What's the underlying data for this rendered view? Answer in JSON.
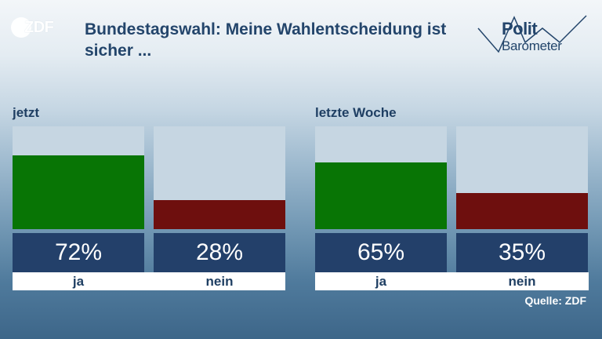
{
  "broadcaster_logo": "ZDF",
  "title": "Bundestagswahl: Meine Wahlentscheidung ist sicher ...",
  "brand": {
    "line1": "Polit",
    "line2": "Barometer"
  },
  "colors": {
    "ja": "#087505",
    "nein": "#6e0f0e",
    "slot": "#c6d6e2",
    "value_box": "#23406a",
    "title": "#23456b"
  },
  "chart_data": [
    {
      "type": "bar",
      "title": "jetzt",
      "categories": [
        "ja",
        "nein"
      ],
      "values": [
        72,
        28
      ],
      "value_labels": [
        "72%",
        "28%"
      ],
      "ylim": [
        0,
        100
      ]
    },
    {
      "type": "bar",
      "title": "letzte Woche",
      "categories": [
        "ja",
        "nein"
      ],
      "values": [
        65,
        35
      ],
      "value_labels": [
        "65%",
        "35%"
      ],
      "ylim": [
        0,
        100
      ]
    }
  ],
  "source": "Quelle: ZDF"
}
